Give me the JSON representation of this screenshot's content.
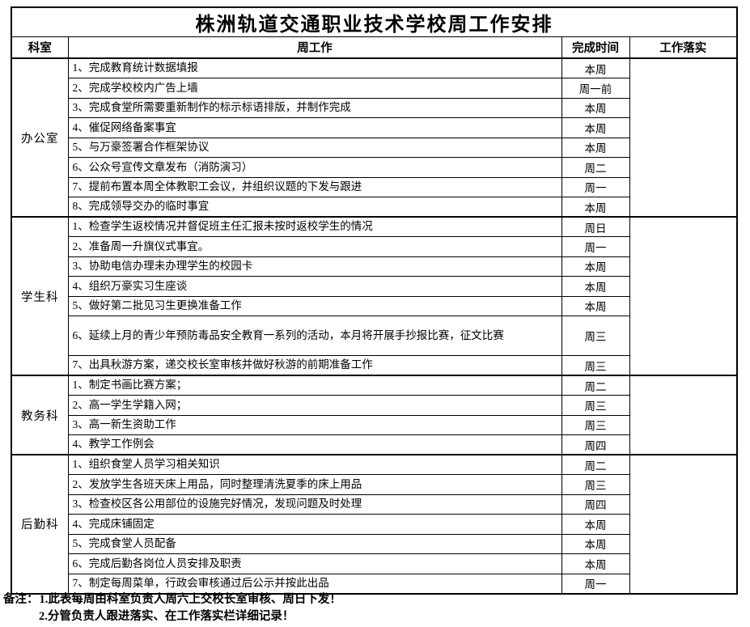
{
  "title": "株洲轨道交通职业技术学校周工作安排",
  "columns": {
    "department": "科室",
    "work": "周工作",
    "deadline": "完成时间",
    "implementation": "工作落实"
  },
  "sections": [
    {
      "department": "办公室",
      "tasks": [
        {
          "text": "1、完成教育统计数据填报",
          "deadline": "本周",
          "tall": false
        },
        {
          "text": "2、完成学校校内广告上墙",
          "deadline": "周一前",
          "tall": false
        },
        {
          "text": "3、完成食堂所需要重新制作的标示标语排版，并制作完成",
          "deadline": "本周",
          "tall": false
        },
        {
          "text": "4、催促网络备案事宜",
          "deadline": "本周",
          "tall": false
        },
        {
          "text": "5、与万豪签署合作框架协议",
          "deadline": "本周",
          "tall": false
        },
        {
          "text": "6、公众号宣传文章发布（消防演习）",
          "deadline": "周二",
          "tall": false
        },
        {
          "text": "7、提前布置本周全体教职工会议，并组织议题的下发与跟进",
          "deadline": "周一",
          "tall": false
        },
        {
          "text": "8、完成领导交办的临时事宜",
          "deadline": "本周",
          "tall": false
        }
      ]
    },
    {
      "department": "学生科",
      "tasks": [
        {
          "text": "1、检查学生返校情况并督促班主任汇报未按时返校学生的情况",
          "deadline": "周日",
          "tall": false
        },
        {
          "text": "2、准备周一升旗仪式事宜。",
          "deadline": "周一",
          "tall": false
        },
        {
          "text": "3、协助电信办理未办理学生的校园卡",
          "deadline": "本周",
          "tall": false
        },
        {
          "text": "4、组织万豪实习生座谈",
          "deadline": "本周",
          "tall": false
        },
        {
          "text": "5、做好第二批见习生更换准备工作",
          "deadline": "本周",
          "tall": false
        },
        {
          "text": "6、延续上月的青少年预防毒品安全教育一系列的活动，本月将开展手抄报比赛，征文比赛",
          "deadline": "周三",
          "tall": true
        },
        {
          "text": "7、出具秋游方案，递交校长室审核并做好秋游的前期准备工作",
          "deadline": "周三",
          "tall": false
        }
      ]
    },
    {
      "department": "教务科",
      "tasks": [
        {
          "text": "1、制定书画比赛方案；",
          "deadline": "周二",
          "tall": false
        },
        {
          "text": "2、高一学生学籍入网；",
          "deadline": "周三",
          "tall": false
        },
        {
          "text": "3、高一新生资助工作",
          "deadline": "周三",
          "tall": false
        },
        {
          "text": "4、教学工作例会",
          "deadline": "周四",
          "tall": false
        }
      ]
    },
    {
      "department": "后勤科",
      "tasks": [
        {
          "text": "1、组织食堂人员学习相关知识",
          "deadline": "周二",
          "tall": false
        },
        {
          "text": "2、发放学生各班天床上用品，同时整理清洗夏季的床上用品",
          "deadline": "周三",
          "tall": false
        },
        {
          "text": "3、检查校区各公用部位的设施完好情况，发现问题及时处理",
          "deadline": "周四",
          "tall": false
        },
        {
          "text": "4、完成床铺固定",
          "deadline": "本周",
          "tall": false
        },
        {
          "text": "5、完成食堂人员配备",
          "deadline": "本周",
          "tall": false
        },
        {
          "text": "6、完成后勤各岗位人员安排及职责",
          "deadline": "本周",
          "tall": false
        },
        {
          "text": "7、制定每周菜单，行政会审核通过后公示并按此出品",
          "deadline": "周一",
          "tall": false
        }
      ]
    }
  ],
  "notes": {
    "label": "备注：",
    "line1": "1.此表每周由科室负责人周六上交校长室审核、周日下发！",
    "line2": "2.分管负责人跟进落实、在工作落实栏详细记录！"
  },
  "colors": {
    "border": "#000000",
    "background": "#ffffff",
    "text": "#000000"
  }
}
